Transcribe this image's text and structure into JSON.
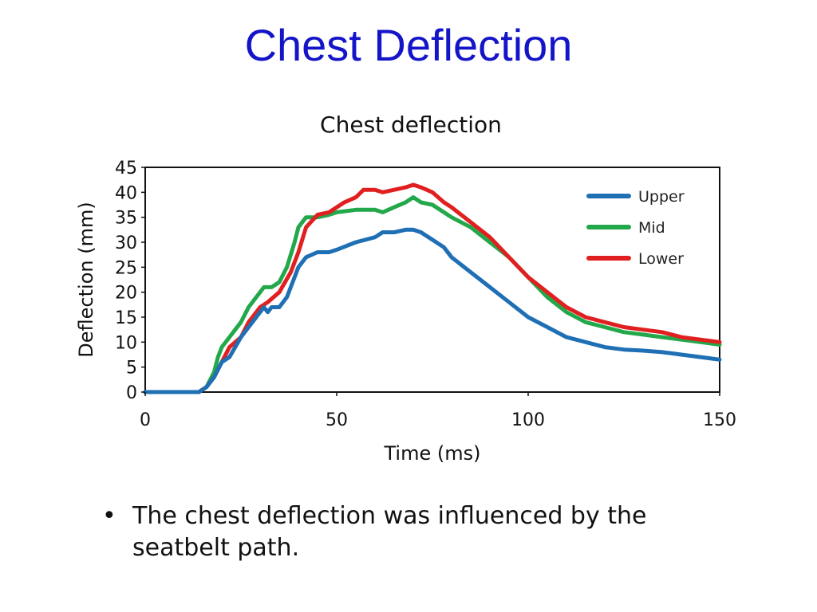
{
  "slide": {
    "title": "Chest Deflection",
    "bullet_symbol": "•",
    "bullet_text": "The chest deflection was influenced by the seatbelt path."
  },
  "chart_data": {
    "type": "line",
    "title": "Chest deflection",
    "xlabel": "Time (ms)",
    "ylabel": "Deflection (mm)",
    "xlim": [
      0,
      150
    ],
    "ylim": [
      0,
      45
    ],
    "xticks": [
      "0",
      "50",
      "100",
      "150"
    ],
    "yticks": [
      "0",
      "5",
      "10",
      "15",
      "20",
      "25",
      "30",
      "35",
      "40",
      "45"
    ],
    "grid": false,
    "legend_position": "top-right",
    "series": [
      {
        "name": "Upper",
        "color": "#1f6fb5",
        "x": [
          0,
          14,
          16,
          18,
          20,
          22,
          25,
          27,
          30,
          31,
          32,
          33,
          35,
          37,
          39,
          40,
          42,
          45,
          48,
          50,
          55,
          60,
          62,
          65,
          68,
          70,
          72,
          75,
          78,
          80,
          85,
          90,
          95,
          100,
          105,
          110,
          115,
          120,
          125,
          130,
          135,
          140,
          145,
          150
        ],
        "y": [
          0,
          0,
          1,
          3,
          6,
          7,
          11,
          13,
          16,
          17,
          16,
          17,
          17,
          19,
          23,
          25,
          27,
          28,
          28,
          28.5,
          30,
          31,
          32,
          32,
          32.5,
          32.5,
          32,
          30.5,
          29,
          27,
          24,
          21,
          18,
          15,
          13,
          11,
          10,
          9,
          8.5,
          8.3,
          8,
          7.5,
          7,
          6.5
        ]
      },
      {
        "name": "Mid",
        "color": "#22a84a",
        "x": [
          0,
          12,
          14,
          16,
          18,
          19,
          20,
          22,
          25,
          27,
          29,
          30,
          31,
          32,
          33,
          35,
          37,
          39,
          40,
          42,
          45,
          48,
          50,
          55,
          60,
          62,
          65,
          68,
          70,
          72,
          75,
          78,
          80,
          85,
          90,
          95,
          100,
          105,
          110,
          115,
          120,
          125,
          130,
          135,
          140,
          145,
          150
        ],
        "y": [
          0,
          0,
          0,
          1,
          4,
          7,
          9,
          11,
          14,
          17,
          19,
          20,
          21,
          21,
          21,
          22,
          25,
          30,
          33,
          35,
          35,
          35.5,
          36,
          36.5,
          36.5,
          36,
          37,
          38,
          39,
          38,
          37.5,
          36,
          35,
          33,
          30,
          27,
          23,
          19,
          16,
          14,
          13,
          12,
          11.5,
          11,
          10.5,
          10,
          9.5
        ]
      },
      {
        "name": "Lower",
        "color": "#e02020",
        "x": [
          0,
          14,
          16,
          18,
          20,
          22,
          25,
          27,
          30,
          32,
          35,
          38,
          40,
          42,
          45,
          48,
          50,
          52,
          55,
          57,
          60,
          62,
          65,
          68,
          70,
          72,
          75,
          78,
          80,
          85,
          90,
          95,
          100,
          105,
          110,
          115,
          120,
          125,
          130,
          135,
          140,
          145,
          150
        ],
        "y": [
          0,
          0,
          1,
          3,
          6,
          9,
          11,
          14,
          17,
          18,
          20,
          24,
          28,
          33,
          35.5,
          36,
          37,
          38,
          39,
          40.5,
          40.5,
          40,
          40.5,
          41,
          41.5,
          41,
          40,
          38,
          37,
          34,
          31,
          27,
          23,
          20,
          17,
          15,
          14,
          13,
          12.5,
          12,
          11,
          10.5,
          10
        ]
      }
    ]
  }
}
